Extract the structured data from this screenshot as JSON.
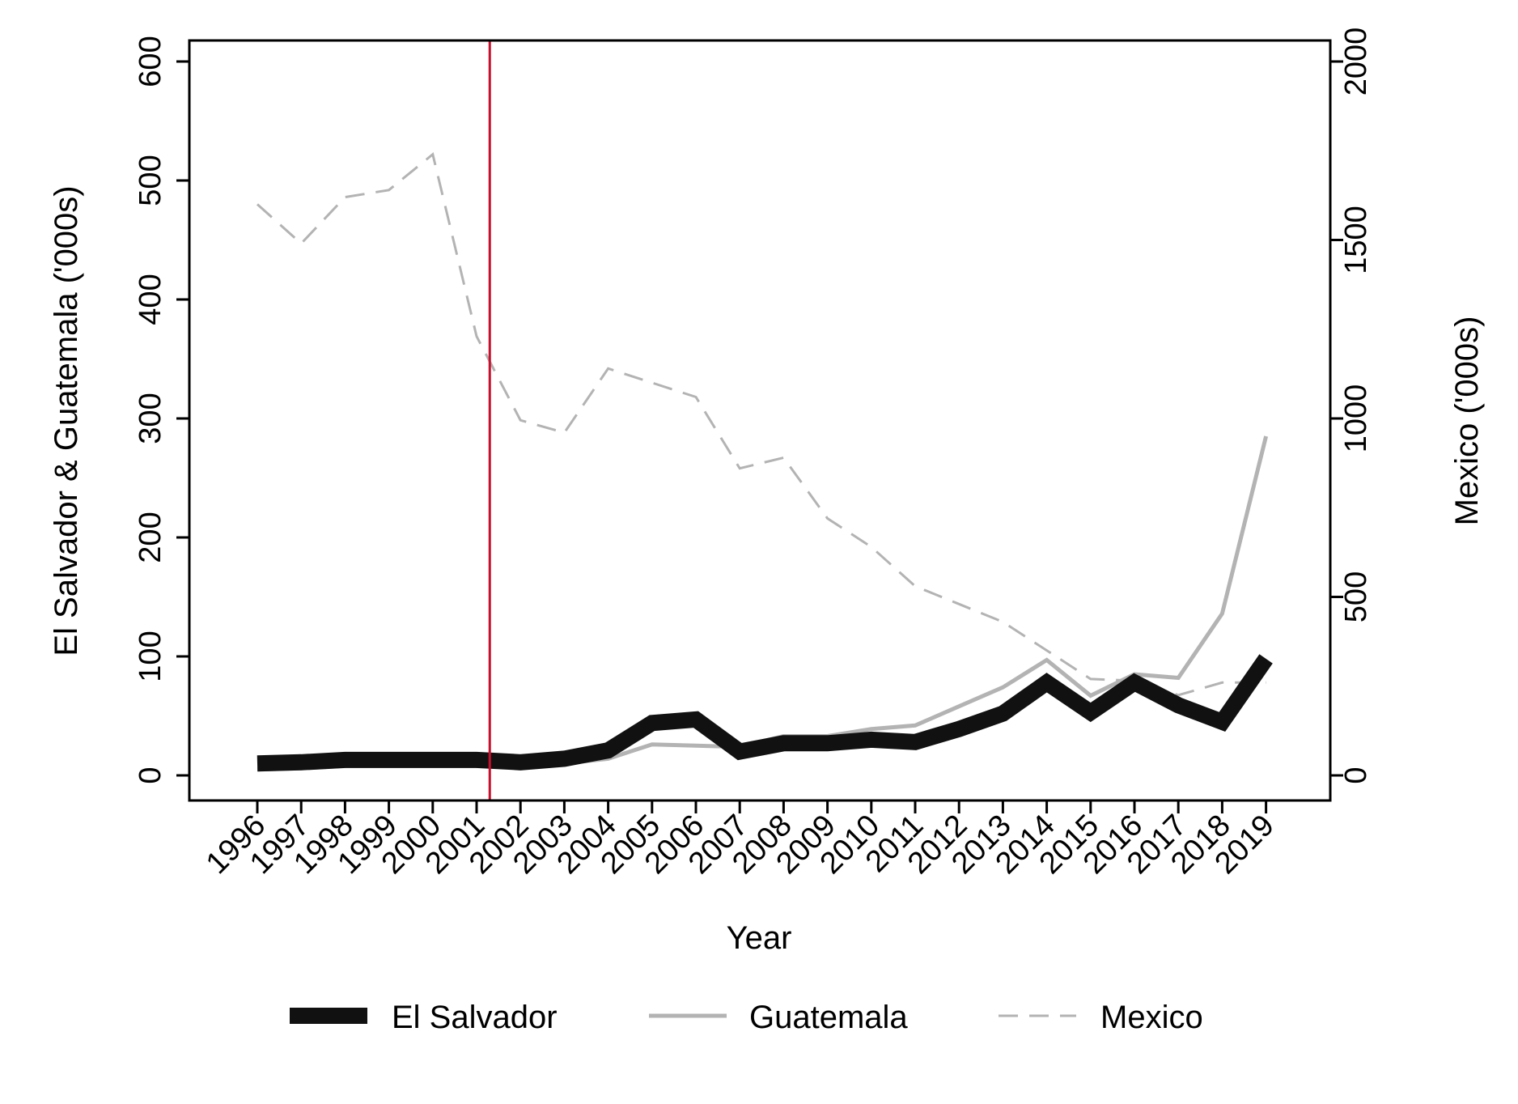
{
  "chart_data": {
    "type": "line",
    "x": [
      1996,
      1997,
      1998,
      1999,
      2000,
      2001,
      2002,
      2003,
      2004,
      2005,
      2006,
      2007,
      2008,
      2009,
      2010,
      2011,
      2012,
      2013,
      2014,
      2015,
      2016,
      2017,
      2018,
      2019
    ],
    "x_tick_labels": [
      "1996",
      "1997",
      "1998",
      "1999",
      "2000",
      "2001",
      "2002",
      "2003",
      "2004",
      "2005",
      "2006",
      "2007",
      "2008",
      "2009",
      "2010",
      "2011",
      "2012",
      "2013",
      "2014",
      "2015",
      "2016",
      "2017",
      "2018",
      "2019"
    ],
    "xlabel": "Year",
    "ylabel_left": "El Salvador & Guatemala ('000s)",
    "ylabel_right": "Mexico ('000s)",
    "ylim_left": [
      0,
      600
    ],
    "yticks_left": [
      "0",
      "100",
      "200",
      "300",
      "400",
      "500",
      "600"
    ],
    "ylim_right": [
      0,
      2000
    ],
    "yticks_right": [
      "0",
      "500",
      "1000",
      "1500",
      "2000"
    ],
    "vertical_line_x": 2001.3,
    "vertical_line_color": "#c8102e",
    "series": [
      {
        "name": "El Salvador",
        "axis": "left",
        "color": "#111111",
        "style": "thick-solid",
        "values": [
          10,
          11,
          13,
          13,
          13,
          13,
          11,
          14,
          21,
          44,
          47,
          20,
          27,
          27,
          30,
          28,
          39,
          52,
          78,
          53,
          78,
          59,
          45,
          98
        ]
      },
      {
        "name": "Guatemala",
        "axis": "left",
        "color": "#b3b3b3",
        "style": "solid",
        "values": [
          5,
          6,
          8,
          8,
          8,
          8,
          9,
          10,
          14,
          26,
          25,
          24,
          33,
          33,
          39,
          42,
          58,
          74,
          97,
          67,
          85,
          82,
          136,
          285
        ]
      },
      {
        "name": "Mexico",
        "axis": "right",
        "color": "#b3b3b3",
        "style": "dashed",
        "values": [
          1600,
          1490,
          1620,
          1640,
          1740,
          1230,
          995,
          960,
          1140,
          1100,
          1060,
          860,
          890,
          720,
          640,
          530,
          480,
          430,
          350,
          270,
          265,
          225,
          260,
          260
        ]
      }
    ],
    "legend": {
      "placement": "bottom",
      "entries": [
        "El Salvador",
        "Guatemala",
        "Mexico"
      ]
    },
    "grid": false
  }
}
